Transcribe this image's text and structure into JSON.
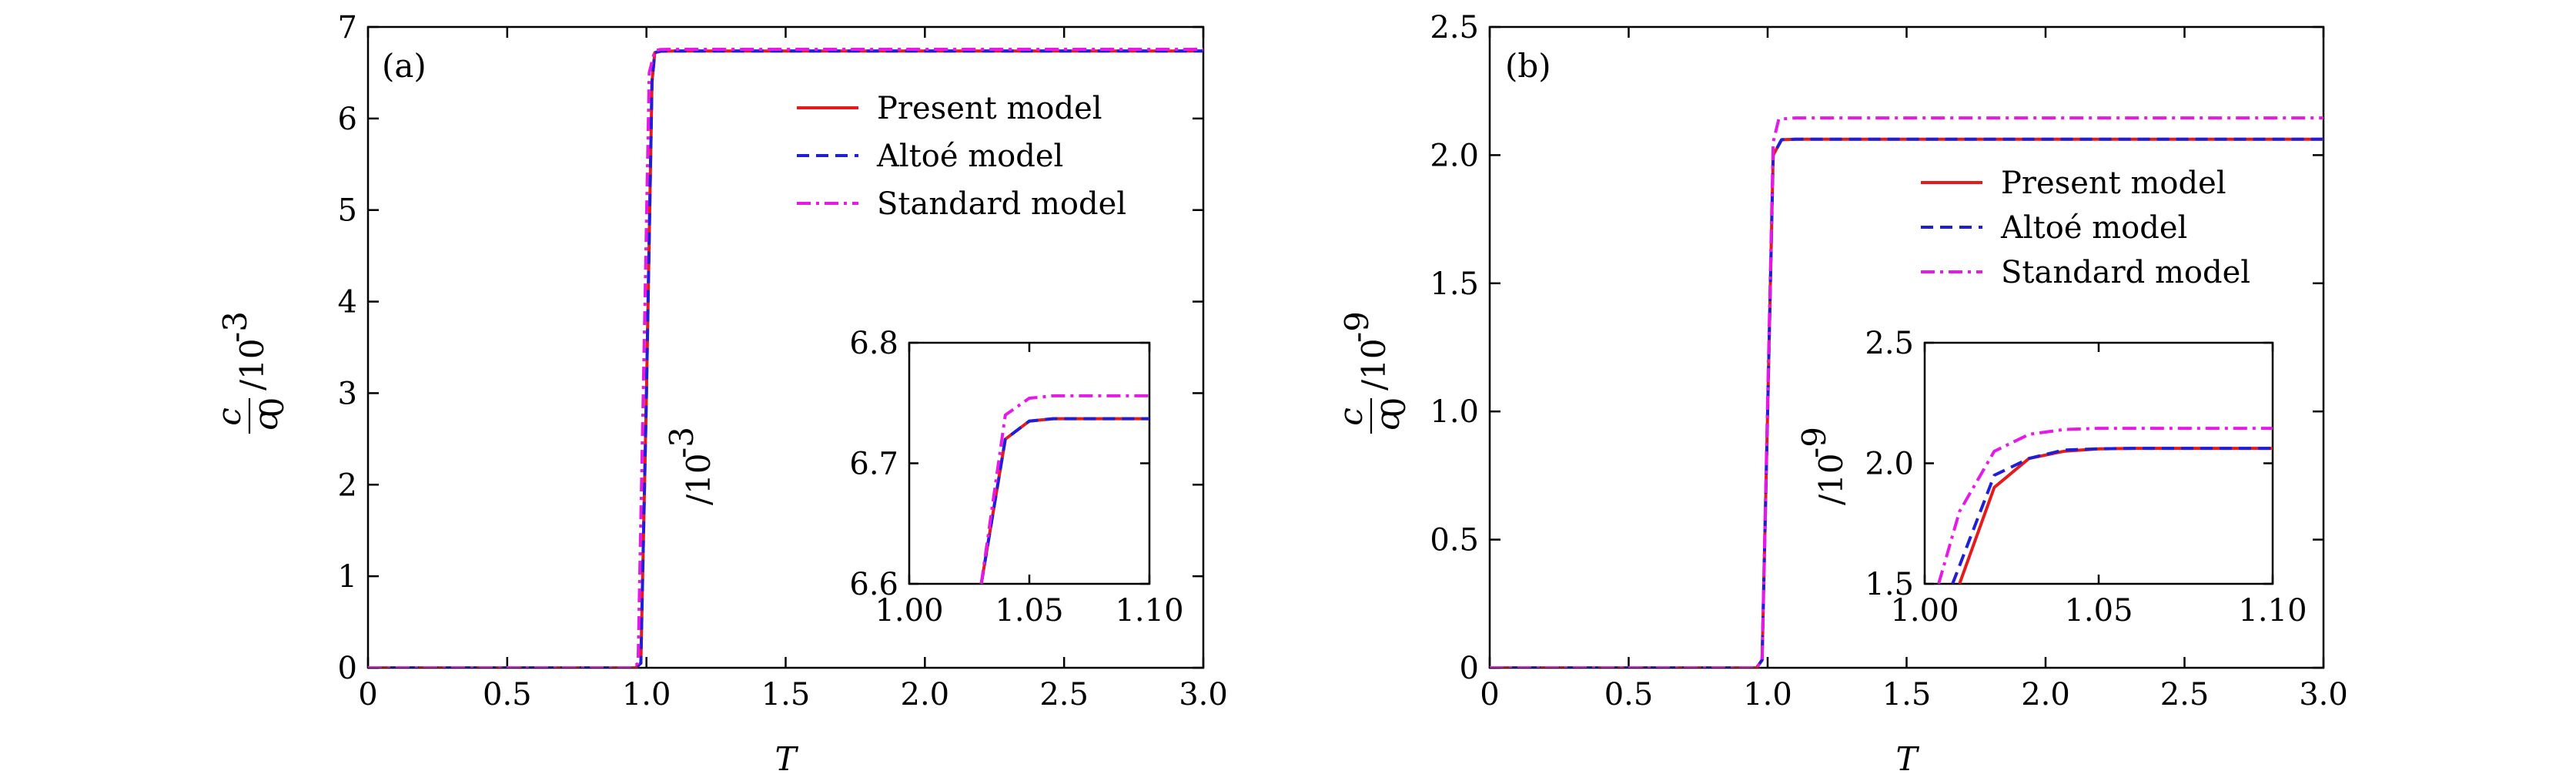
{
  "chart_data": [
    {
      "id": "a",
      "type": "line",
      "panel_label": "(a)",
      "xlabel": "T",
      "ylabel": "c/c0 /10^-3",
      "xlim": [
        0,
        3.0
      ],
      "ylim": [
        0,
        7
      ],
      "xticks": [
        "0",
        "0.5",
        "1.0",
        "1.5",
        "2.0",
        "2.5",
        "3.0"
      ],
      "yticks": [
        "0",
        "1",
        "2",
        "3",
        "4",
        "5",
        "6",
        "7"
      ],
      "legend_position": "upper-right",
      "series": [
        {
          "name": "Present model",
          "color": "#e41a1c",
          "dash": "solid",
          "x": [
            0,
            0.96,
            0.98,
            1.0,
            1.02,
            1.03,
            1.05,
            1.1,
            3.0
          ],
          "y": [
            0,
            0,
            0.05,
            3.0,
            6.4,
            6.72,
            6.735,
            6.737,
            6.737
          ]
        },
        {
          "name": "Altoé model",
          "color": "#1f1fd6",
          "dash": "dashed",
          "x": [
            0,
            0.96,
            0.98,
            1.0,
            1.02,
            1.03,
            1.05,
            1.1,
            3.0
          ],
          "y": [
            0,
            0,
            0.05,
            3.0,
            6.4,
            6.72,
            6.735,
            6.737,
            6.737
          ]
        },
        {
          "name": "Standard model",
          "color": "#e619e6",
          "dash": "dashdot",
          "x": [
            0,
            0.95,
            0.97,
            0.99,
            1.01,
            1.03,
            1.05,
            1.1,
            3.0
          ],
          "y": [
            0,
            0,
            0.05,
            3.2,
            6.5,
            6.74,
            6.754,
            6.756,
            6.756
          ]
        }
      ],
      "inset": {
        "ylabel": "/10^-3",
        "xlim": [
          1.0,
          1.1
        ],
        "ylim": [
          6.6,
          6.8
        ],
        "xticks": [
          "1.00",
          "1.05",
          "1.10"
        ],
        "yticks": [
          "6.6",
          "6.7",
          "6.8"
        ],
        "series": [
          {
            "name": "Present model",
            "x": [
              1.03,
              1.04,
              1.05,
              1.06,
              1.08,
              1.1
            ],
            "y": [
              6.6,
              6.72,
              6.735,
              6.737,
              6.737,
              6.737
            ]
          },
          {
            "name": "Altoé model",
            "x": [
              1.03,
              1.04,
              1.05,
              1.06,
              1.08,
              1.1
            ],
            "y": [
              6.6,
              6.72,
              6.735,
              6.737,
              6.737,
              6.737
            ]
          },
          {
            "name": "Standard model",
            "x": [
              1.03,
              1.04,
              1.05,
              1.06,
              1.08,
              1.1
            ],
            "y": [
              6.6,
              6.74,
              6.754,
              6.756,
              6.756,
              6.756
            ]
          }
        ]
      }
    },
    {
      "id": "b",
      "type": "line",
      "panel_label": "(b)",
      "xlabel": "T",
      "ylabel": "c/c0 /10^-9",
      "xlim": [
        0,
        3.0
      ],
      "ylim": [
        0,
        2.5
      ],
      "xticks": [
        "0",
        "0.5",
        "1.0",
        "1.5",
        "2.0",
        "2.5",
        "3.0"
      ],
      "yticks": [
        "0",
        "0.5",
        "1.0",
        "1.5",
        "2.0",
        "2.5"
      ],
      "legend_position": "upper-right",
      "series": [
        {
          "name": "Present model",
          "color": "#e41a1c",
          "dash": "solid",
          "x": [
            0,
            0.96,
            0.98,
            1.0,
            1.02,
            1.05,
            1.1,
            3.0
          ],
          "y": [
            0,
            0,
            0.03,
            1.0,
            2.0,
            2.06,
            2.062,
            2.062
          ]
        },
        {
          "name": "Altoé model",
          "color": "#1f1fd6",
          "dash": "dashed",
          "x": [
            0,
            0.96,
            0.98,
            1.0,
            1.02,
            1.05,
            1.1,
            3.0
          ],
          "y": [
            0,
            0,
            0.03,
            1.0,
            2.0,
            2.06,
            2.062,
            2.062
          ]
        },
        {
          "name": "Standard model",
          "color": "#e619e6",
          "dash": "dashdot",
          "x": [
            0,
            0.96,
            0.98,
            1.0,
            1.02,
            1.04,
            1.1,
            3.0
          ],
          "y": [
            0,
            0,
            0.03,
            1.05,
            2.05,
            2.14,
            2.145,
            2.145
          ]
        }
      ],
      "inset": {
        "ylabel": "/10^-9",
        "xlim": [
          1.0,
          1.1
        ],
        "ylim": [
          1.5,
          2.5
        ],
        "xticks": [
          "1.00",
          "1.05",
          "1.10"
        ],
        "yticks": [
          "1.5",
          "2.0",
          "2.5"
        ],
        "series": [
          {
            "name": "Present model",
            "x": [
              1.01,
              1.02,
              1.03,
              1.04,
              1.05,
              1.06,
              1.08,
              1.1
            ],
            "y": [
              1.5,
              1.9,
              2.02,
              2.05,
              2.06,
              2.062,
              2.062,
              2.062
            ]
          },
          {
            "name": "Altoé model",
            "x": [
              1.008,
              1.02,
              1.03,
              1.04,
              1.05,
              1.06,
              1.08,
              1.1
            ],
            "y": [
              1.5,
              1.95,
              2.02,
              2.055,
              2.06,
              2.062,
              2.062,
              2.062
            ]
          },
          {
            "name": "Standard model",
            "x": [
              1.004,
              1.01,
              1.02,
              1.03,
              1.04,
              1.05,
              1.08,
              1.1
            ],
            "y": [
              1.5,
              1.8,
              2.05,
              2.12,
              2.14,
              2.145,
              2.145,
              2.145
            ]
          }
        ]
      }
    }
  ]
}
